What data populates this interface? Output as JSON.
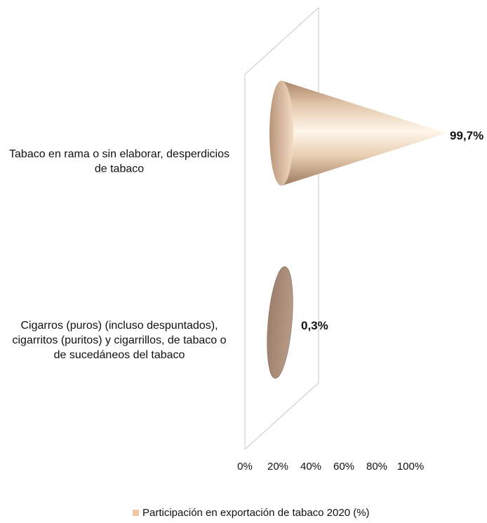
{
  "chart_data": {
    "type": "bar",
    "orientation": "horizontal",
    "shape": "cone",
    "categories": [
      "Tabaco en rama o sin elaborar, desperdicios de tabaco",
      "Cigarros (puros) (incluso despuntados), cigarritos (puritos) y cigarrillos, de tabaco o de sucedáneos del tabaco"
    ],
    "category_lines": [
      [
        "Tabaco en rama o sin elaborar, desperdicios",
        "de tabaco"
      ],
      [
        "Cigarros (puros) (incluso despuntados),",
        "cigarritos (puritos) y cigarrillos, de tabaco o",
        "de sucedáneos del tabaco"
      ]
    ],
    "series": [
      {
        "name": "Participación en exportación de tabaco 2020 (%)",
        "values": [
          99.7,
          0.3
        ],
        "labels": [
          "99,7%",
          "0,3%"
        ]
      }
    ],
    "xlim": [
      0,
      100
    ],
    "x_ticks": [
      "0%",
      "20%",
      "40%",
      "60%",
      "80%",
      "100%"
    ],
    "grid": false,
    "legend_position": "bottom",
    "colors": {
      "cone_light": "#fff4e6",
      "cone_mid": "#f0d6bb",
      "cone_dark": "#a98468",
      "small_cone": "#a88b78",
      "small_cone_edge": "#8c7060",
      "axis_line": "#c8c8c8",
      "legend_swatch": "#f2c7a5"
    }
  }
}
